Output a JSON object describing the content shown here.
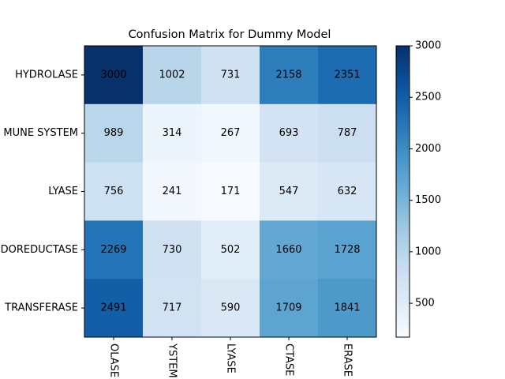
{
  "chart_data": {
    "type": "heatmap",
    "title": "Confusion Matrix for Dummy Model",
    "x_categories": [
      "OLASE",
      "YSTEM",
      "LYASE",
      "CTASE",
      "ERASE"
    ],
    "y_categories": [
      "HYDROLASE",
      "MUNE SYSTEM",
      "LYASE",
      "DOREDUCTASE",
      "TRANSFERASE"
    ],
    "values": [
      [
        3000,
        1002,
        731,
        2158,
        2351
      ],
      [
        989,
        314,
        267,
        693,
        787
      ],
      [
        756,
        241,
        171,
        547,
        632
      ],
      [
        2269,
        730,
        502,
        1660,
        1728
      ],
      [
        2491,
        717,
        590,
        1709,
        1841
      ]
    ],
    "colormap": "Blues",
    "zlim": [
      171,
      3000
    ],
    "colorbar_ticks": [
      500,
      1000,
      1500,
      2000,
      2500,
      3000
    ]
  }
}
